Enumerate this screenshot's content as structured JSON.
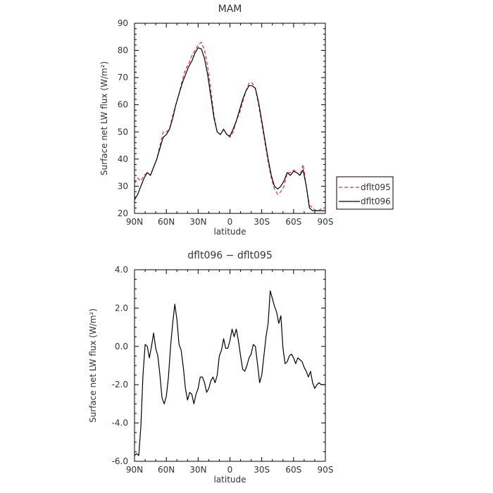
{
  "chart_data": [
    {
      "type": "line",
      "title": "MAM",
      "xlabel": "latitude",
      "ylabel": "Surface net LW flux (W/m²)",
      "xlim": [
        90,
        -90
      ],
      "ylim": [
        20,
        90
      ],
      "x_ticks": [
        90,
        60,
        30,
        0,
        -30,
        -60,
        -90
      ],
      "x_tick_labels": [
        "90N",
        "60N",
        "30N",
        "0",
        "30S",
        "60S",
        "90S"
      ],
      "y_ticks": [
        20,
        30,
        40,
        50,
        60,
        70,
        80,
        90
      ],
      "y_tick_labels": [
        "20",
        "30",
        "40",
        "50",
        "60",
        "70",
        "80",
        "90"
      ],
      "legend_position": "right",
      "series": [
        {
          "name": "dflt095",
          "color": "#e03030",
          "dash": "dashed",
          "x": [
            90,
            87,
            84,
            81,
            78,
            75,
            72,
            69,
            66,
            63,
            60,
            57,
            54,
            51,
            48,
            45,
            42,
            39,
            36,
            33,
            30,
            27,
            24,
            21,
            18,
            15,
            12,
            9,
            6,
            3,
            0,
            -3,
            -6,
            -9,
            -12,
            -15,
            -18,
            -21,
            -24,
            -27,
            -30,
            -33,
            -36,
            -39,
            -42,
            -45,
            -48,
            -51,
            -54,
            -57,
            -60,
            -63,
            -66,
            -69,
            -72,
            -75,
            -78,
            -81,
            -84,
            -87,
            -90
          ],
          "y": [
            31,
            33,
            32,
            34,
            35,
            34,
            37,
            40,
            45,
            50,
            50,
            51,
            56,
            60,
            64,
            69,
            73,
            75,
            78,
            80,
            82,
            83,
            80,
            74,
            65,
            56,
            50,
            49,
            51,
            49,
            48,
            50,
            54,
            57,
            61,
            65,
            68,
            68,
            66,
            60,
            53,
            46,
            39,
            33,
            29,
            27,
            28,
            30,
            35,
            35,
            36,
            35,
            34,
            38,
            30,
            23,
            22,
            21,
            21,
            22,
            22
          ]
        },
        {
          "name": "dflt096",
          "color": "#000000",
          "dash": "solid",
          "x": [
            90,
            87,
            84,
            81,
            78,
            75,
            72,
            69,
            66,
            63,
            60,
            57,
            54,
            51,
            48,
            45,
            42,
            39,
            36,
            33,
            30,
            27,
            24,
            21,
            18,
            15,
            12,
            9,
            6,
            3,
            0,
            -3,
            -6,
            -9,
            -12,
            -15,
            -18,
            -21,
            -24,
            -27,
            -30,
            -33,
            -36,
            -39,
            -42,
            -45,
            -48,
            -51,
            -54,
            -57,
            -60,
            -63,
            -66,
            -69,
            -72,
            -75,
            -78,
            -81,
            -84,
            -87,
            -90
          ],
          "y": [
            25,
            27,
            30,
            33,
            35,
            34,
            37,
            40,
            44,
            48,
            49,
            51,
            55,
            60,
            64,
            68,
            71,
            74,
            76,
            79,
            81,
            80.5,
            77,
            71,
            63,
            55,
            50,
            49,
            51,
            49,
            48.5,
            51,
            54,
            58,
            62,
            65,
            67,
            67,
            66,
            61,
            54,
            47,
            40,
            34,
            30,
            29,
            30,
            32,
            35,
            34,
            35.5,
            35,
            34,
            36,
            30,
            22,
            21,
            21,
            21,
            21,
            21
          ]
        }
      ]
    },
    {
      "type": "line",
      "title": "dflt096 − dflt095",
      "xlabel": "latitude",
      "ylabel": "Surface net LW flux (W/m²)",
      "xlim": [
        90,
        -90
      ],
      "ylim": [
        -6,
        4
      ],
      "x_ticks": [
        90,
        60,
        30,
        0,
        -30,
        -60,
        -90
      ],
      "x_tick_labels": [
        "90N",
        "60N",
        "30N",
        "0",
        "30S",
        "60S",
        "90S"
      ],
      "y_ticks": [
        -6,
        -4,
        -2,
        0,
        2,
        4
      ],
      "y_tick_labels": [
        "-6.0",
        "-4.0",
        "-2.0",
        "0.0",
        "2.0",
        "4.0"
      ],
      "series": [
        {
          "color": "#000000",
          "dash": "solid",
          "x": [
            90,
            88,
            86,
            84,
            82,
            80,
            78,
            76,
            74,
            72,
            70,
            68,
            66,
            64,
            62,
            60,
            58,
            56,
            54,
            52,
            50,
            48,
            46,
            44,
            42,
            40,
            38,
            36,
            34,
            32,
            30,
            28,
            26,
            24,
            22,
            20,
            18,
            16,
            14,
            12,
            10,
            8,
            6,
            4,
            2,
            0,
            -2,
            -4,
            -6,
            -8,
            -10,
            -12,
            -14,
            -16,
            -18,
            -20,
            -22,
            -24,
            -26,
            -28,
            -30,
            -32,
            -34,
            -36,
            -38,
            -40,
            -42,
            -44,
            -46,
            -48,
            -50,
            -52,
            -54,
            -56,
            -58,
            -60,
            -62,
            -64,
            -66,
            -68,
            -70,
            -72,
            -74,
            -76,
            -78,
            -80,
            -82,
            -84,
            -86,
            -88,
            -90
          ],
          "y": [
            -5.7,
            -5.6,
            -5.7,
            -4.2,
            -1.5,
            0.1,
            0.0,
            -0.6,
            0.0,
            0.7,
            -0.1,
            -0.5,
            -1.5,
            -2.7,
            -3.0,
            -2.6,
            -1.6,
            0.0,
            1.2,
            2.2,
            1.4,
            0.1,
            -0.2,
            -1.1,
            -2.2,
            -2.8,
            -2.4,
            -2.5,
            -3.0,
            -2.5,
            -2.2,
            -1.6,
            -1.6,
            -1.9,
            -2.4,
            -2.2,
            -1.8,
            -1.6,
            -1.9,
            -1.5,
            -0.5,
            -0.2,
            0.4,
            -0.1,
            -0.1,
            0.3,
            0.9,
            0.5,
            0.9,
            0.3,
            -0.5,
            -1.2,
            -1.3,
            -1.0,
            -0.6,
            -0.4,
            0.1,
            0.0,
            -0.9,
            -1.9,
            -1.5,
            -0.5,
            0.5,
            1.2,
            2.9,
            2.5,
            2.1,
            1.8,
            1.2,
            1.6,
            -0.1,
            -0.9,
            -0.8,
            -0.5,
            -0.4,
            -0.6,
            -0.9,
            -0.6,
            -0.7,
            -0.8,
            -1.1,
            -1.3,
            -1.6,
            -1.3,
            -1.9,
            -2.2,
            -2.0,
            -1.9,
            -2.0,
            -2.0,
            -2.0
          ]
        }
      ]
    }
  ]
}
